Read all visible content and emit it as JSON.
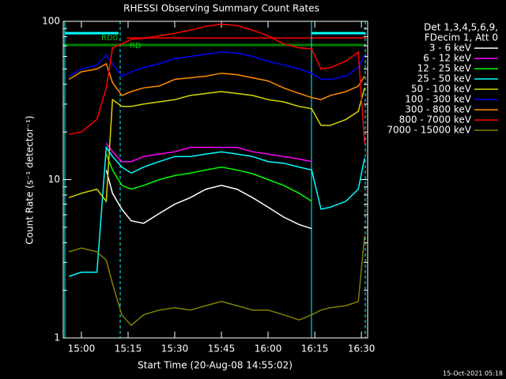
{
  "chart_data": {
    "type": "line",
    "title": "RHESSI Observing Summary Count Rates",
    "xlabel": "Start Time (20-Aug-08 14:55:02)",
    "ylabel": "Count Rate (s⁻¹ detector⁻¹)",
    "footer": "15-Oct-2021 05:18",
    "legend_header": [
      "Det 1,3,4,5,6,9,",
      "FDecim 1, Att 0"
    ],
    "annotations": [
      "RD0",
      "RD"
    ],
    "log_y": true,
    "xlim": [
      "14:54:10",
      "16:32"
    ],
    "xticks": [
      "15:00",
      "15:15",
      "15:30",
      "15:45",
      "16:00",
      "16:15",
      "16:30"
    ],
    "ylim": [
      1,
      100
    ],
    "yticks": [
      1,
      10,
      100
    ],
    "yminorticks": [
      2,
      3,
      4,
      5,
      6,
      7,
      8,
      9,
      20,
      30,
      40,
      50,
      60,
      70,
      80,
      90
    ],
    "x": [
      "14:56",
      "15:00",
      "15:05",
      "15:08",
      "15:10",
      "15:13",
      "15:16",
      "15:20",
      "15:25",
      "15:30",
      "15:35",
      "15:40",
      "15:45",
      "15:50",
      "15:55",
      "16:00",
      "16:05",
      "16:10",
      "16:14",
      "16:17",
      "16:20",
      "16:25",
      "16:29",
      "16:31"
    ],
    "series": [
      {
        "name": "3 - 6 keV",
        "color": "#ffffff",
        "values": [
          null,
          null,
          null,
          11.5,
          8.2,
          6.5,
          5.5,
          5.3,
          6.1,
          7,
          7.7,
          8.7,
          9.2,
          8.7,
          7.7,
          6.7,
          5.8,
          5.2,
          4.9,
          null,
          null,
          null,
          null,
          null
        ]
      },
      {
        "name": "6 - 12 keV",
        "color": "#ff00ff",
        "values": [
          null,
          null,
          null,
          17,
          15,
          13,
          13,
          14,
          14.5,
          15,
          16,
          16,
          16,
          16,
          15,
          14.5,
          14,
          13.5,
          13,
          null,
          null,
          null,
          null,
          null
        ]
      },
      {
        "name": "12 - 25 keV",
        "color": "#00ff00",
        "values": [
          null,
          null,
          null,
          14.5,
          11.5,
          9.2,
          8.7,
          9.2,
          10,
          10.6,
          11,
          11.5,
          12,
          11.5,
          10.9,
          10,
          9.2,
          8.2,
          7.3,
          null,
          null,
          null,
          null,
          null
        ]
      },
      {
        "name": "25 - 50 keV",
        "color": "#00ffff",
        "values": [
          2.45,
          2.6,
          2.6,
          16,
          14,
          12,
          11,
          12,
          13,
          14,
          14,
          14.5,
          15,
          14.5,
          14,
          13,
          12.7,
          12,
          11.5,
          6.5,
          6.7,
          7.3,
          8.7,
          13.7
        ]
      },
      {
        "name": "50 - 100 keV",
        "color": "#d7d700",
        "values": [
          7.7,
          8.2,
          8.7,
          7.3,
          32,
          29,
          29,
          30,
          31,
          32,
          34,
          35,
          36,
          35,
          34,
          32,
          31,
          29,
          28,
          22,
          22,
          24,
          27,
          38
        ]
      },
      {
        "name": "100 - 300 keV",
        "color": "#0000ff",
        "values": [
          45,
          50,
          53,
          61,
          54,
          45,
          48,
          51,
          54,
          58,
          60,
          62,
          64,
          63,
          60,
          56,
          53,
          50,
          47,
          43,
          43,
          45,
          51,
          61
        ]
      },
      {
        "name": "300 - 800 keV",
        "color": "#ff8c00",
        "values": [
          43,
          48,
          50,
          54,
          41,
          34,
          36,
          38,
          39,
          43,
          44,
          45,
          47,
          46,
          44,
          42,
          38,
          35,
          33,
          32,
          34,
          36,
          39,
          45
        ]
      },
      {
        "name": "800 - 7000 keV",
        "color": "#ff0000",
        "values": [
          19.3,
          20,
          24,
          38,
          68,
          72,
          77,
          78,
          81,
          84,
          88,
          93,
          96,
          94,
          88,
          81,
          72,
          68,
          67,
          50,
          51,
          56,
          64,
          17
        ]
      },
      {
        "name": "7000 - 15000 keV",
        "color": "#808000",
        "values": [
          3.5,
          3.7,
          3.5,
          3.1,
          2.2,
          1.4,
          1.2,
          1.4,
          1.5,
          1.55,
          1.5,
          1.6,
          1.7,
          1.6,
          1.5,
          1.5,
          1.4,
          1.3,
          1.4,
          1.5,
          1.55,
          1.6,
          1.7,
          4.4
        ]
      }
    ]
  }
}
